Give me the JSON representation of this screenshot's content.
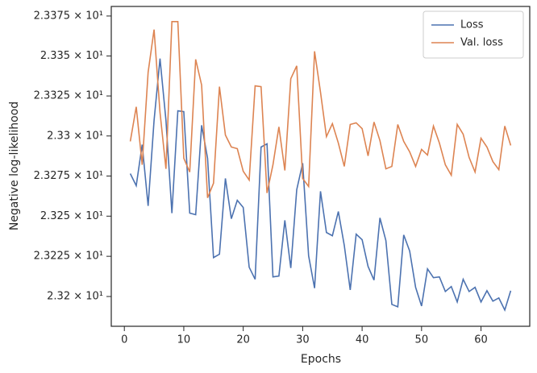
{
  "chart_data": {
    "type": "line",
    "xlabel": "Epochs",
    "ylabel": "Negative log-likelihood",
    "x": [
      1,
      2,
      3,
      4,
      5,
      6,
      7,
      8,
      9,
      10,
      11,
      12,
      13,
      14,
      15,
      16,
      17,
      18,
      19,
      20,
      21,
      22,
      23,
      24,
      25,
      26,
      27,
      28,
      29,
      30,
      31,
      32,
      33,
      34,
      35,
      36,
      37,
      38,
      39,
      40,
      41,
      42,
      43,
      44,
      45,
      46,
      47,
      48,
      49,
      50,
      51,
      52,
      53,
      54,
      55,
      56,
      57,
      58,
      59,
      60,
      61,
      62,
      63,
      64,
      65
    ],
    "series": [
      {
        "name": "Loss",
        "color": "#4c72b0",
        "values": [
          23.2765,
          23.269,
          23.2946,
          23.2564,
          23.3097,
          23.3484,
          23.3097,
          23.2519,
          23.3157,
          23.3152,
          23.2519,
          23.2509,
          23.3067,
          23.2861,
          23.2242,
          23.2263,
          23.2735,
          23.2484,
          23.2599,
          23.2554,
          23.2182,
          23.2107,
          23.2931,
          23.2951,
          23.2122,
          23.2127,
          23.2474,
          23.2177,
          23.2665,
          23.283,
          23.2253,
          23.2052,
          23.2655,
          23.2398,
          23.2378,
          23.2529,
          23.2318,
          23.2041,
          23.2388,
          23.2353,
          23.2187,
          23.2102,
          23.2489,
          23.2348,
          23.1951,
          23.1936,
          23.2383,
          23.2283,
          23.2057,
          23.1941,
          23.2172,
          23.2117,
          23.2122,
          23.2031,
          23.2062,
          23.1966,
          23.2107,
          23.2031,
          23.2057,
          23.1966,
          23.2036,
          23.1971,
          23.1991,
          23.1916,
          23.2036
        ]
      },
      {
        "name": "Val. loss",
        "color": "#dd8452",
        "values": [
          23.2966,
          23.3182,
          23.282,
          23.3398,
          23.3665,
          23.3147,
          23.2795,
          23.3715,
          23.3715,
          23.2861,
          23.2775,
          23.3479,
          23.3318,
          23.2614,
          23.2705,
          23.3308,
          23.3006,
          23.2931,
          23.2921,
          23.278,
          23.2725,
          23.3313,
          23.3308,
          23.2644,
          23.282,
          23.3057,
          23.2785,
          23.3358,
          23.3438,
          23.2735,
          23.2685,
          23.3529,
          23.3273,
          23.2996,
          23.3077,
          23.2956,
          23.281,
          23.3072,
          23.3082,
          23.3046,
          23.2876,
          23.3087,
          23.2971,
          23.2795,
          23.281,
          23.3072,
          23.2966,
          23.2901,
          23.281,
          23.2916,
          23.2881,
          23.3062,
          23.2956,
          23.282,
          23.2755,
          23.3072,
          23.3011,
          23.2866,
          23.2775,
          23.2986,
          23.2931,
          23.284,
          23.279,
          23.3062,
          23.2941
        ]
      }
    ],
    "xlim": [
      -2.2,
      68.2
    ],
    "xticks": [
      0,
      10,
      20,
      30,
      40,
      50,
      60
    ],
    "ylim": [
      23.1815,
      23.381
    ],
    "yscale": "log",
    "yticks": [
      {
        "value": 23.2,
        "label": "2.32 × 10¹"
      },
      {
        "value": 23.225,
        "label": "2.3225 × 10¹"
      },
      {
        "value": 23.25,
        "label": "2.325 × 10¹"
      },
      {
        "value": 23.275,
        "label": "2.3275 × 10¹"
      },
      {
        "value": 23.3,
        "label": "2.33 × 10¹"
      },
      {
        "value": 23.325,
        "label": "2.3325 × 10¹"
      },
      {
        "value": 23.35,
        "label": "2.335 × 10¹"
      },
      {
        "value": 23.375,
        "label": "2.3375 × 10¹"
      }
    ],
    "grid": false,
    "legend": "upper right"
  }
}
